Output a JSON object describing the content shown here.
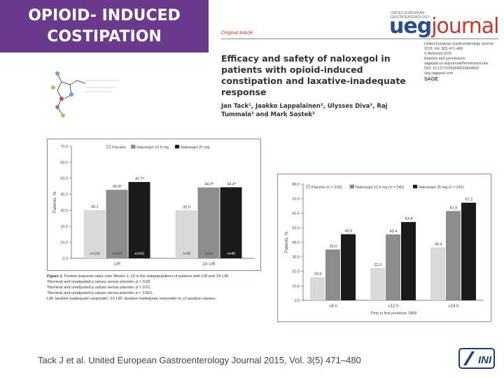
{
  "slide": {
    "title_line1": "OPIOID- INDUCED",
    "title_line2": "COSTIPATION",
    "citation": "Tack J et al. United European Gastroenterology Journal 2015, Vol. 3(5) 471–480"
  },
  "article": {
    "label": "Original Article",
    "title": "Efficacy and safety of naloxegol in patients with opioid-induced constipation and laxative-inadequate response",
    "authors": "Jan Tack¹, Jaakko Lappalainen², Ulysses Diva³, Raj Tummala³ and Mark Sostek³",
    "journal_small": "UNITED EUROPEAN GASTROENTEROLOGY",
    "journal_logo_a": "ueg",
    "journal_logo_b": "journal",
    "journal_info": [
      "United European Gastroenterology Journal",
      "2015, Vol. 3(5) 471–480",
      "© Author(s) 2015",
      "Reprints and permissions:",
      "sagepub.co.uk/journalsPermissions.nav",
      "DOI: 10.1177/2050640615604543",
      "ueg.sagepub.com"
    ],
    "publisher": "SAGE"
  },
  "figure1_caption": {
    "title": "Figure 1.",
    "text": "Pooled response rates over Weeks 1–12 in the subpopulations of patients with LIR and 2X LIR.",
    "notes": [
      "ᵃNominal and unadjusted p values versus placebo: p < 0.05",
      "ᵇNominal and unadjusted p values versus placebo: p < 0.01.",
      "ᶜNominal and unadjusted p values versus placebo: p < 0.001.",
      "LIR: laxative-inadequate responder; 2X LIR: laxative-inadequate responder to ≥2 laxative classes."
    ]
  },
  "chart_data": [
    {
      "type": "bar",
      "title": "",
      "ylabel": "Patients, %",
      "xlabel": "",
      "ylim": [
        0,
        70
      ],
      "yticks": [
        "0.0",
        "10.0",
        "20.0",
        "30.0",
        "40.0",
        "50.0",
        "60.0",
        "70.0"
      ],
      "categories": [
        "LIR",
        "2X LIR"
      ],
      "colors": [
        "#d9d9d9",
        "#8c8c8c",
        "#1a1a1a"
      ],
      "series": [
        {
          "name": "Placebo",
          "values": [
            30.1,
            30.0
          ],
          "labels": [
            "30.1",
            "30.0"
          ],
          "n": [
            "n=239",
            "n=30"
          ]
        },
        {
          "name": "Naloxegol 12.5 mg",
          "values": [
            42.8,
            44.3
          ],
          "labels": [
            "42.8ᵇ",
            "44.3ᵃ"
          ],
          "n": [
            "n=243",
            "n=56"
          ]
        },
        {
          "name": "Naloxegol 25 mg",
          "values": [
            47.7,
            44.4
          ],
          "labels": [
            "47.7ᶜ",
            "44.4ᵃ"
          ],
          "n": [
            "n=241",
            "n=45"
          ]
        }
      ]
    },
    {
      "type": "bar",
      "title": "",
      "ylabel": "Patients, %",
      "xlabel": "Time to first postdose SBM",
      "ylim": [
        0,
        80
      ],
      "yticks": [
        "0.0",
        "10.0",
        "20.0",
        "30.0",
        "40.0",
        "50.0",
        "60.0",
        "70.0",
        "80.0"
      ],
      "categories": [
        "≤6 h",
        "≤12 h",
        "≤24 h"
      ],
      "colors": [
        "#d9d9d9",
        "#8c8c8c",
        "#1a1a1a"
      ],
      "series": [
        {
          "name": "Placebo (n = 239)",
          "values": [
            15.9,
            22.2,
            36.4
          ],
          "labels": [
            "15.9",
            "22.2",
            "36.4"
          ]
        },
        {
          "name": "Naloxegol 12.5 mg (n = 240)",
          "values": [
            35.0,
            45.4,
            61.5
          ],
          "labels": [
            "35.0",
            "45.4",
            "61.5"
          ]
        },
        {
          "name": "Naloxegol 25 mg (n = 241)",
          "values": [
            45.5,
            53.9,
            67.2
          ],
          "labels": [
            "45.5",
            "53.9",
            "67.2"
          ]
        }
      ]
    }
  ],
  "logo": {
    "text": "INI"
  }
}
